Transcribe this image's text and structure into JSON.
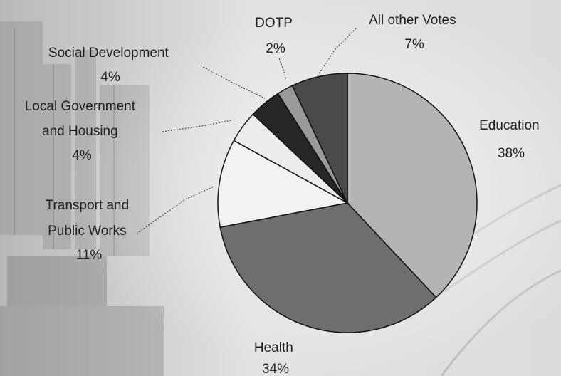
{
  "chart_data": {
    "type": "pie",
    "slices": [
      {
        "name": "Education",
        "value": 38,
        "pct_label": "38%",
        "color": "#b4b4b4"
      },
      {
        "name": "Health",
        "value": 34,
        "pct_label": "34%",
        "color": "#6e6e6e"
      },
      {
        "name": "Transport and Public Works",
        "value": 11,
        "pct_label": "11%",
        "color": "#f2f2f2"
      },
      {
        "name": "Local Government and Housing",
        "value": 4,
        "pct_label": "4%",
        "color": "#ececec"
      },
      {
        "name": "Social Development",
        "value": 4,
        "pct_label": "4%",
        "color": "#262626"
      },
      {
        "name": "DOTP",
        "value": 2,
        "pct_label": "2%",
        "color": "#9a9a9a"
      },
      {
        "name": "All other Votes",
        "value": 7,
        "pct_label": "7%",
        "color": "#4a4a4a"
      }
    ],
    "start_angle_deg": 0,
    "direction": "clockwise",
    "legend": "none (labels placed around pie)"
  },
  "labels": {
    "education": {
      "lines": [
        "Education"
      ],
      "pct": "38%"
    },
    "health": {
      "lines": [
        "Health"
      ],
      "pct": "34%"
    },
    "transport": {
      "lines": [
        "Transport and",
        "Public Works"
      ],
      "pct": "11%"
    },
    "local_gov": {
      "lines": [
        "Local Government",
        "and Housing"
      ],
      "pct": "4%"
    },
    "social_dev": {
      "lines": [
        "Social Development"
      ],
      "pct": "4%"
    },
    "dotp": {
      "lines": [
        "DOTP"
      ],
      "pct": "2%"
    },
    "other": {
      "lines": [
        "All other Votes"
      ],
      "pct": "7%"
    }
  }
}
